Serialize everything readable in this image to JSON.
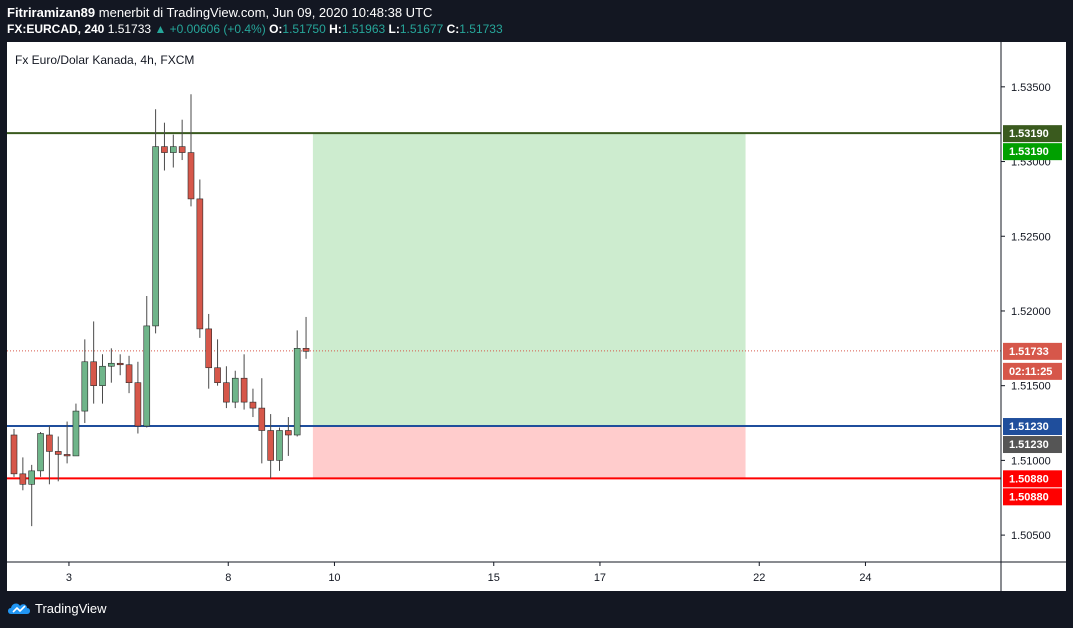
{
  "header": {
    "author": "Fitriramizan89",
    "published_text": "menerbit di TradingView.com, Jun 09, 2020 10:48:38 UTC",
    "symbol": "FX:EURCAD, 240",
    "price": "1.51733",
    "change": "▲ +0.00606 (+0.4%)",
    "o_label": "O:",
    "o_value": "1.51750",
    "h_label": "H:",
    "h_value": "1.51963",
    "l_label": "L:",
    "l_value": "1.51677",
    "c_label": "C:",
    "c_value": "1.51733"
  },
  "footer": {
    "brand": "TradingView"
  },
  "colors": {
    "bull": "#6fb58a",
    "bear": "#d6574a",
    "target": "#3a5a1e",
    "entry": "#1f4e9c",
    "stop": "#ff0000",
    "profit_zone": "#cdeccf",
    "loss_zone": "#ffcccc",
    "current": "#d6574a"
  },
  "chart_data": {
    "type": "candlestick",
    "title": "Fx Euro/Dolar Kanada, 4h, FXCM",
    "x_ticks": [
      "3",
      "8",
      "10",
      "15",
      "17",
      "22",
      "24"
    ],
    "y_ticks": [
      "1.53500",
      "1.53000",
      "1.52500",
      "1.52000",
      "1.51500",
      "1.51000",
      "1.50500"
    ],
    "ylim": [
      1.5032,
      1.538
    ],
    "candles": [
      {
        "o": 1.5117,
        "h": 1.5121,
        "l": 1.5089,
        "c": 1.5091
      },
      {
        "o": 1.5091,
        "h": 1.5102,
        "l": 1.508,
        "c": 1.5084
      },
      {
        "o": 1.5084,
        "h": 1.5097,
        "l": 1.5056,
        "c": 1.5093
      },
      {
        "o": 1.5093,
        "h": 1.5119,
        "l": 1.5089,
        "c": 1.5118
      },
      {
        "o": 1.5117,
        "h": 1.5123,
        "l": 1.5084,
        "c": 1.5106
      },
      {
        "o": 1.5106,
        "h": 1.5116,
        "l": 1.5086,
        "c": 1.5104
      },
      {
        "o": 1.5104,
        "h": 1.5126,
        "l": 1.5098,
        "c": 1.5103
      },
      {
        "o": 1.5103,
        "h": 1.5138,
        "l": 1.5103,
        "c": 1.5133
      },
      {
        "o": 1.5133,
        "h": 1.5181,
        "l": 1.5125,
        "c": 1.5166
      },
      {
        "o": 1.5166,
        "h": 1.5193,
        "l": 1.5138,
        "c": 1.515
      },
      {
        "o": 1.515,
        "h": 1.5171,
        "l": 1.5138,
        "c": 1.5163
      },
      {
        "o": 1.5163,
        "h": 1.5175,
        "l": 1.5152,
        "c": 1.5165
      },
      {
        "o": 1.5165,
        "h": 1.5171,
        "l": 1.5157,
        "c": 1.5164
      },
      {
        "o": 1.5164,
        "h": 1.517,
        "l": 1.5145,
        "c": 1.5152
      },
      {
        "o": 1.5152,
        "h": 1.5166,
        "l": 1.5118,
        "c": 1.5123
      },
      {
        "o": 1.5123,
        "h": 1.521,
        "l": 1.5122,
        "c": 1.519
      },
      {
        "o": 1.519,
        "h": 1.5335,
        "l": 1.5185,
        "c": 1.531
      },
      {
        "o": 1.531,
        "h": 1.5326,
        "l": 1.5294,
        "c": 1.5306
      },
      {
        "o": 1.5306,
        "h": 1.5318,
        "l": 1.5296,
        "c": 1.531
      },
      {
        "o": 1.531,
        "h": 1.5328,
        "l": 1.5301,
        "c": 1.5306
      },
      {
        "o": 1.5306,
        "h": 1.5345,
        "l": 1.527,
        "c": 1.5275
      },
      {
        "o": 1.5275,
        "h": 1.5288,
        "l": 1.5182,
        "c": 1.5188
      },
      {
        "o": 1.5188,
        "h": 1.5198,
        "l": 1.5148,
        "c": 1.5162
      },
      {
        "o": 1.5162,
        "h": 1.5181,
        "l": 1.515,
        "c": 1.5152
      },
      {
        "o": 1.5152,
        "h": 1.5163,
        "l": 1.5135,
        "c": 1.5139
      },
      {
        "o": 1.5139,
        "h": 1.516,
        "l": 1.5135,
        "c": 1.5155
      },
      {
        "o": 1.5155,
        "h": 1.5171,
        "l": 1.5134,
        "c": 1.5139
      },
      {
        "o": 1.5139,
        "h": 1.5148,
        "l": 1.5129,
        "c": 1.5135
      },
      {
        "o": 1.5135,
        "h": 1.5155,
        "l": 1.5098,
        "c": 1.512
      },
      {
        "o": 1.512,
        "h": 1.5131,
        "l": 1.5088,
        "c": 1.51
      },
      {
        "o": 1.51,
        "h": 1.5122,
        "l": 1.5093,
        "c": 1.512
      },
      {
        "o": 1.512,
        "h": 1.5129,
        "l": 1.5103,
        "c": 1.5117
      },
      {
        "o": 1.5117,
        "h": 1.5187,
        "l": 1.5116,
        "c": 1.5175
      },
      {
        "o": 1.5175,
        "h": 1.5196,
        "l": 1.5168,
        "c": 1.5173
      }
    ],
    "levels": {
      "target": {
        "value": 1.5319,
        "label": "1.53190"
      },
      "entry": {
        "value": 1.5123,
        "label": "1.51230"
      },
      "stop": {
        "value": 1.5088,
        "label": "1.50880"
      },
      "current": {
        "value": 1.51733,
        "label": "1.51733",
        "countdown": "02:11:25"
      }
    },
    "position": {
      "start_bar": 34,
      "end_bar": 83
    }
  }
}
